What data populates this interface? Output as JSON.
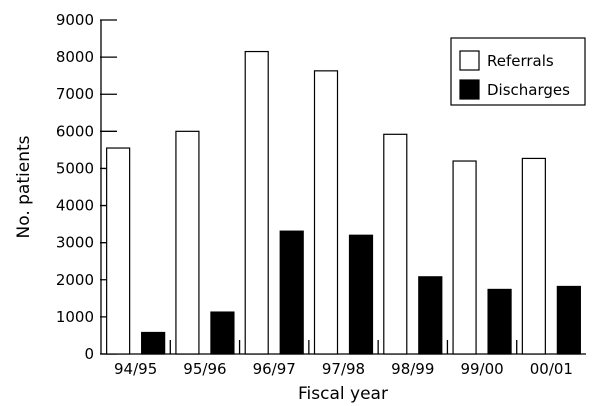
{
  "chart_data": {
    "type": "bar",
    "title": "",
    "xlabel": "Fiscal year",
    "ylabel": "No. patients",
    "categories": [
      "94/95",
      "95/96",
      "96/97",
      "97/98",
      "98/99",
      "99/00",
      "00/01"
    ],
    "series": [
      {
        "name": "Referrals",
        "values": [
          5550,
          6000,
          8150,
          7630,
          5920,
          5200,
          5270
        ],
        "color": "#ffffff"
      },
      {
        "name": "Discharges",
        "values": [
          580,
          1130,
          3310,
          3200,
          2080,
          1740,
          1820
        ],
        "color": "#000000"
      }
    ],
    "ylim": [
      0,
      9000
    ],
    "yticks": [
      0,
      1000,
      2000,
      3000,
      4000,
      5000,
      6000,
      7000,
      8000,
      9000
    ],
    "legend_position": "top-right",
    "grid": false
  }
}
